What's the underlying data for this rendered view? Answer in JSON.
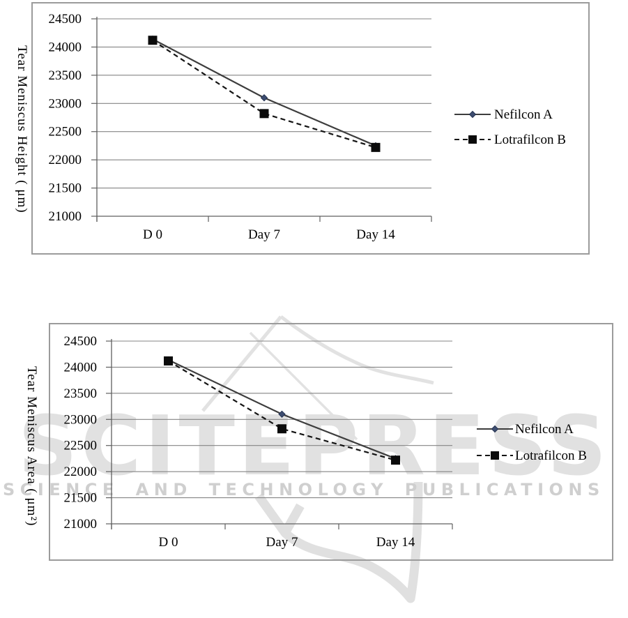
{
  "watermark": {
    "brand": "SCITEPRESS",
    "tagline": "SCIENCE AND TECHNOLOGY PUBLICATIONS",
    "brand_color": "#e1e1e1",
    "tagline_color": "#cfcfcf",
    "shape_color": "#e2e2e2"
  },
  "chart_data": [
    {
      "type": "line",
      "title": "",
      "xlabel": "",
      "ylabel": "Tear Meniscus Height ( μm)",
      "categories": [
        "D 0",
        "Day 7",
        "Day 14"
      ],
      "series": [
        {
          "name": "Nefilcon A",
          "values": [
            24140,
            23100,
            22250
          ],
          "line_style": "solid",
          "marker": "diamond",
          "line_color": "#3d3d3d",
          "marker_color": "#3d4d70",
          "marker_edge": "#233150"
        },
        {
          "name": "Lotrafilcon B",
          "values": [
            24120,
            22820,
            22220
          ],
          "line_style": "dashed",
          "marker": "square",
          "line_color": "#141414",
          "marker_color": "#0b0b0b",
          "marker_edge": "#0b0b0b"
        }
      ],
      "ylim": [
        21000,
        24500
      ],
      "ytick_labels": [
        "24500",
        "24000",
        "23500",
        "23000",
        "22500",
        "22000",
        "21500",
        "21000"
      ],
      "grid": true,
      "legend_position": "right"
    },
    {
      "type": "line",
      "title": "",
      "xlabel": "",
      "ylabel": "Tear  Meniscus Area ( μm²)",
      "categories": [
        "D 0",
        "Day 7",
        "Day 14"
      ],
      "series": [
        {
          "name": "Nefilcon A",
          "values": [
            24140,
            23100,
            22250
          ],
          "line_style": "solid",
          "marker": "diamond",
          "line_color": "#3d3d3d",
          "marker_color": "#3d4d70",
          "marker_edge": "#233150"
        },
        {
          "name": "Lotrafilcon B",
          "values": [
            24120,
            22820,
            22220
          ],
          "line_style": "dashed",
          "marker": "square",
          "line_color": "#141414",
          "marker_color": "#0b0b0b",
          "marker_edge": "#0b0b0b"
        }
      ],
      "ylim": [
        21000,
        24500
      ],
      "ytick_labels": [
        "24500",
        "24000",
        "23500",
        "23000",
        "22500",
        "22000",
        "21500",
        "21000"
      ],
      "grid": true,
      "legend_position": "right"
    }
  ]
}
